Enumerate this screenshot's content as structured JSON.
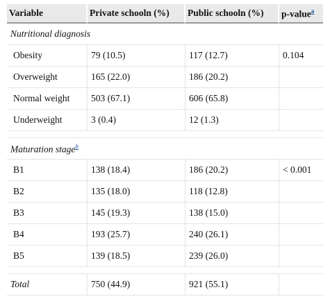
{
  "header": {
    "variable": "Variable",
    "private": "Private schooln (%)",
    "public": "Public schooln (%)",
    "pvalue": "p-value",
    "pvalue_note": "a"
  },
  "nutritional": {
    "title": "Nutritional diagnosis",
    "rows": [
      {
        "label": "Obesity",
        "private": "79 (10.5)",
        "public": "117 (12.7)",
        "p": "0.104"
      },
      {
        "label": "Overweight",
        "private": "165 (22.0)",
        "public": "186 (20.2)",
        "p": ""
      },
      {
        "label": "Normal weight",
        "private": "503 (67.1)",
        "public": "606 (65.8)",
        "p": ""
      },
      {
        "label": "Underweight",
        "private": "3 (0.4)",
        "public": "12 (1.3)",
        "p": ""
      }
    ]
  },
  "maturation": {
    "title": "Maturation stage",
    "note": "b",
    "rows": [
      {
        "label": "B1",
        "private": "138 (18.4)",
        "public": "186 (20.2)",
        "p": "< 0.001"
      },
      {
        "label": "B2",
        "private": "135 (18.0)",
        "public": "118 (12.8)",
        "p": ""
      },
      {
        "label": "B3",
        "private": "145 (19.3)",
        "public": "138 (15.0)",
        "p": ""
      },
      {
        "label": "B4",
        "private": "193 (25.7)",
        "public": "240 (26.1)",
        "p": ""
      },
      {
        "label": "B5",
        "private": "139 (18.5)",
        "public": "239 (26.0)",
        "p": ""
      }
    ]
  },
  "total": {
    "label": "Total",
    "private": "750 (44.9)",
    "public": "921 (55.1)",
    "p": ""
  }
}
